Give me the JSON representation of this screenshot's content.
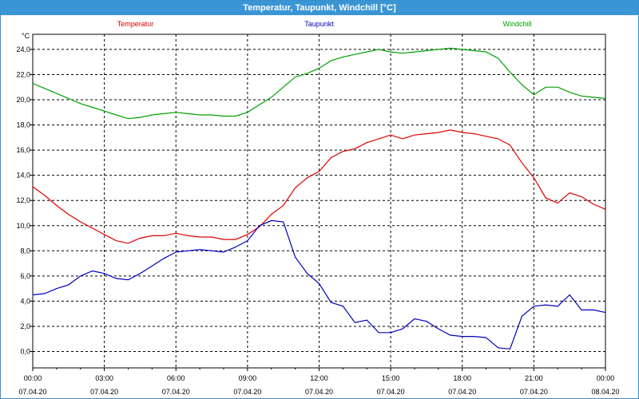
{
  "window": {
    "title": "Temperatur, Taupunkt, Windchill [°C]"
  },
  "chart_data": {
    "type": "line",
    "title": "Temperatur, Taupunkt, Windchill [°C]",
    "ylabel": "°C",
    "xlabel": "",
    "ylim": [
      -1.3,
      25.2
    ],
    "xlim": [
      0,
      24
    ],
    "yticks": [
      0,
      2,
      4,
      6,
      8,
      10,
      12,
      14,
      16,
      18,
      20,
      22,
      24
    ],
    "ytick_labels": [
      "0,0",
      "2,0",
      "4,0",
      "6,0",
      "8,0",
      "10,0",
      "12,0",
      "14,0",
      "16,0",
      "18,0",
      "20,0",
      "22,0",
      "24,0"
    ],
    "xticks": [
      0,
      3,
      6,
      9,
      12,
      15,
      18,
      21,
      24
    ],
    "xtick_times": [
      "00:00",
      "03:00",
      "06:00",
      "09:00",
      "12:00",
      "15:00",
      "18:00",
      "21:00",
      "00:00"
    ],
    "xtick_dates": [
      "07.04.20",
      "07.04.20",
      "07.04.20",
      "07.04.20",
      "07.04.20",
      "07.04.20",
      "07.04.20",
      "07.04.20",
      "08.04.20"
    ],
    "grid": true,
    "legend_placement": "top",
    "x": [
      0,
      0.5,
      1,
      1.5,
      2,
      2.5,
      3,
      3.5,
      4,
      4.5,
      5,
      5.5,
      6,
      6.5,
      7,
      7.5,
      8,
      8.5,
      9,
      9.5,
      10,
      10.5,
      11,
      11.5,
      12,
      12.5,
      13,
      13.5,
      14,
      14.5,
      15,
      15.5,
      16,
      16.5,
      17,
      17.5,
      18,
      18.5,
      19,
      19.5,
      20,
      20.5,
      21,
      21.5,
      22,
      22.5,
      23,
      23.5,
      24
    ],
    "series": [
      {
        "name": "Temperatur",
        "color": "#e00000",
        "values": [
          13.1,
          12.4,
          11.6,
          10.9,
          10.3,
          9.8,
          9.3,
          8.8,
          8.6,
          9.0,
          9.2,
          9.2,
          9.4,
          9.2,
          9.1,
          9.1,
          8.9,
          8.9,
          9.3,
          9.9,
          10.9,
          11.6,
          13.0,
          13.8,
          14.3,
          15.4,
          15.9,
          16.1,
          16.6,
          16.9,
          17.2,
          16.9,
          17.2,
          17.3,
          17.4,
          17.6,
          17.4,
          17.3,
          17.1,
          16.9,
          16.4,
          15.0,
          13.8,
          12.2,
          11.8,
          12.6,
          12.3,
          11.7,
          11.3
        ]
      },
      {
        "name": "Taupunkt",
        "color": "#0000c0",
        "values": [
          4.5,
          4.6,
          5.0,
          5.3,
          6.0,
          6.4,
          6.2,
          5.8,
          5.7,
          6.2,
          6.8,
          7.4,
          7.9,
          8.0,
          8.1,
          8.0,
          7.9,
          8.3,
          8.8,
          10.0,
          10.4,
          10.3,
          7.5,
          6.2,
          5.4,
          3.9,
          3.6,
          2.3,
          2.5,
          1.5,
          1.5,
          1.8,
          2.6,
          2.4,
          1.8,
          1.3,
          1.2,
          1.2,
          1.1,
          0.3,
          0.2,
          2.8,
          3.6,
          3.7,
          3.6,
          4.5,
          3.3,
          3.3,
          3.1
        ]
      },
      {
        "name": "Windchill",
        "color": "#00a000",
        "values": [
          21.3,
          20.9,
          20.5,
          20.1,
          19.7,
          19.4,
          19.1,
          18.8,
          18.5,
          18.6,
          18.8,
          18.9,
          19.0,
          18.9,
          18.8,
          18.8,
          18.7,
          18.7,
          19.0,
          19.6,
          20.2,
          21.0,
          21.8,
          22.1,
          22.5,
          23.1,
          23.4,
          23.6,
          23.8,
          24.0,
          23.8,
          23.7,
          23.8,
          23.9,
          24.0,
          24.1,
          24.0,
          23.9,
          23.8,
          23.3,
          22.2,
          21.2,
          20.4,
          21.0,
          21.0,
          20.6,
          20.3,
          20.2,
          20.1
        ]
      }
    ]
  }
}
